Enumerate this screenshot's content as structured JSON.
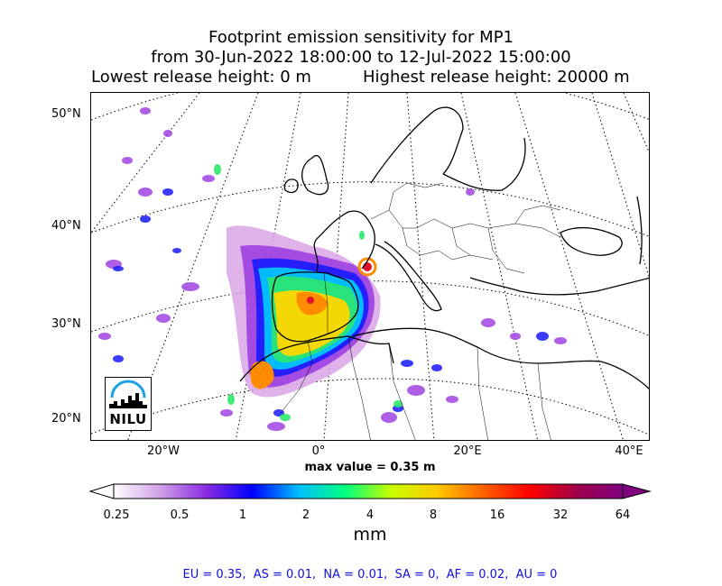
{
  "title": {
    "line1": "Footprint emission sensitivity for MP1",
    "line2": "from 30-Jun-2022 18:00:00 to 12-Jul-2022 15:00:00",
    "lowest": "Lowest release height: 0 m",
    "highest": "Highest release height: 20000 m"
  },
  "map": {
    "projection": "stereographic-like curved graticule",
    "lat_labels": [
      "50°N",
      "40°N",
      "30°N",
      "20°N"
    ],
    "lon_labels": [
      "20°W",
      "0°",
      "20°E",
      "40°E"
    ],
    "logo_text": "NILU",
    "max_value": "max value = 0.35 m",
    "hotspot_colors": {
      "lowest": "#d9a6e6",
      "low": "#9a38e0",
      "mid": "#1a1aff",
      "mid2": "#00ccff",
      "mid3": "#2ee86b",
      "high": "#ffd700",
      "higher": "#ff8c00",
      "peak": "#e0102c"
    }
  },
  "colorbar": {
    "ticks": [
      "0.25",
      "0.5",
      "1",
      "2",
      "4",
      "8",
      "16",
      "32",
      "64"
    ],
    "unit": "mm",
    "stops": [
      "#ffffff",
      "#d0a0e8",
      "#8a2be2",
      "#0000ff",
      "#00bfff",
      "#00ff80",
      "#c8ff00",
      "#ffc800",
      "#ff6000",
      "#ff0000",
      "#a0004a",
      "#800080"
    ]
  },
  "footer": "EU = 0.35,  AS = 0.01,  NA = 0.01,  SA = 0,  AF = 0.02,  AU = 0"
}
